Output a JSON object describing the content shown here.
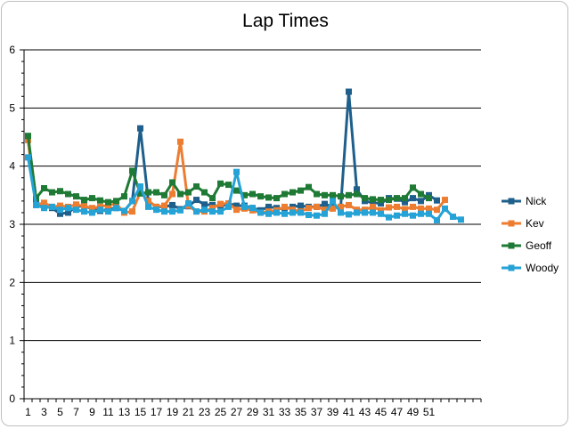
{
  "chart_data": {
    "type": "line",
    "title": "Lap Times",
    "xlabel": "",
    "ylabel": "",
    "ylim": [
      0,
      6
    ],
    "yticks": [
      0,
      1,
      2,
      3,
      4,
      5,
      6
    ],
    "x_tick_labels": [
      "1",
      "3",
      "5",
      "7",
      "9",
      "11",
      "13",
      "15",
      "17",
      "19",
      "21",
      "23",
      "25",
      "27",
      "29",
      "31",
      "33",
      "35",
      "37",
      "39",
      "41",
      "43",
      "45",
      "47",
      "49",
      "51"
    ],
    "num_categories": 57,
    "grid": "horizontal major gridlines",
    "legend": "right",
    "series": [
      {
        "name": "Nick",
        "color": "#1f5f8b",
        "marker": "square",
        "values": [
          4.45,
          3.38,
          3.31,
          3.28,
          3.18,
          3.2,
          3.3,
          3.32,
          3.26,
          3.23,
          3.26,
          3.28,
          3.23,
          3.4,
          4.65,
          3.4,
          3.3,
          3.3,
          3.33,
          3.26,
          3.31,
          3.42,
          3.34,
          3.33,
          3.3,
          3.36,
          3.32,
          3.32,
          3.28,
          3.24,
          3.3,
          3.28,
          3.26,
          3.3,
          3.32,
          3.3,
          3.3,
          3.35,
          3.3,
          3.3,
          5.28,
          3.6,
          3.4,
          3.37,
          3.36,
          3.45,
          3.44,
          3.38,
          3.45,
          3.4,
          3.5,
          3.41
        ]
      },
      {
        "name": "Kev",
        "color": "#ed7d31",
        "marker": "square",
        "values": [
          4.45,
          3.33,
          3.37,
          3.3,
          3.32,
          3.3,
          3.34,
          3.31,
          3.28,
          3.3,
          3.33,
          3.35,
          3.2,
          3.22,
          3.55,
          3.4,
          3.3,
          3.32,
          3.52,
          4.42,
          3.32,
          3.22,
          3.22,
          3.28,
          3.35,
          3.36,
          3.25,
          3.27,
          3.24,
          3.2,
          3.22,
          3.24,
          3.3,
          3.25,
          3.22,
          3.28,
          3.3,
          3.25,
          3.27,
          3.3,
          3.33,
          3.25,
          3.25,
          3.3,
          3.24,
          3.29,
          3.3,
          3.26,
          3.3,
          3.27,
          3.27,
          3.25,
          3.42
        ]
      },
      {
        "name": "Geoff",
        "color": "#1e7a34",
        "marker": "square",
        "values": [
          4.52,
          3.45,
          3.62,
          3.55,
          3.57,
          3.52,
          3.48,
          3.42,
          3.45,
          3.41,
          3.38,
          3.4,
          3.48,
          3.92,
          3.53,
          3.55,
          3.55,
          3.5,
          3.72,
          3.52,
          3.55,
          3.65,
          3.55,
          3.45,
          3.7,
          3.68,
          3.58,
          3.5,
          3.52,
          3.48,
          3.46,
          3.45,
          3.52,
          3.55,
          3.58,
          3.64,
          3.52,
          3.5,
          3.5,
          3.48,
          3.5,
          3.52,
          3.45,
          3.43,
          3.42,
          3.42,
          3.45,
          3.45,
          3.63,
          3.52,
          3.45
        ]
      },
      {
        "name": "Woody",
        "color": "#25a3d6",
        "marker": "square",
        "values": [
          4.15,
          3.33,
          3.28,
          3.3,
          3.25,
          3.28,
          3.25,
          3.22,
          3.2,
          3.25,
          3.22,
          3.28,
          3.23,
          3.4,
          3.65,
          3.3,
          3.25,
          3.22,
          3.22,
          3.24,
          3.36,
          3.22,
          3.25,
          3.22,
          3.22,
          3.3,
          3.9,
          3.3,
          3.28,
          3.2,
          3.18,
          3.2,
          3.18,
          3.2,
          3.2,
          3.16,
          3.15,
          3.18,
          3.4,
          3.2,
          3.17,
          3.2,
          3.2,
          3.2,
          3.18,
          3.12,
          3.15,
          3.18,
          3.15,
          3.18,
          3.18,
          3.07,
          3.27,
          3.13,
          3.08
        ]
      }
    ]
  }
}
